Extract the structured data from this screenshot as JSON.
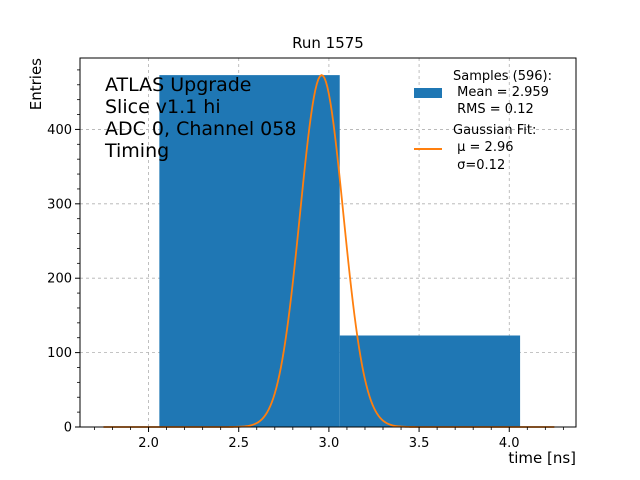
{
  "title": "Run 1575",
  "xlabel": "time [ns]",
  "ylabel": "Entries",
  "annotation_lines": [
    "ATLAS Upgrade",
    "Slice v1.1 hi",
    "ADC 0, Channel 058",
    "Timing"
  ],
  "legend": {
    "placement": "top-right",
    "hist_lines": [
      "Samples (596):",
      " Mean = 2.959",
      " RMS = 0.12"
    ],
    "fit_lines": [
      "Gaussian Fit:",
      " μ = 2.96",
      " σ=0.12"
    ]
  },
  "colors": {
    "hist": "#1f77b4",
    "fit": "#ff7f0e",
    "grid": "#b0b0b0"
  },
  "chart_data": {
    "type": "bar",
    "title": "Run 1575",
    "xlabel": "time [ns]",
    "ylabel": "Entries",
    "xlim": [
      1.62,
      4.37
    ],
    "ylim": [
      0,
      496
    ],
    "grid": true,
    "xticks": [
      2.0,
      2.5,
      3.0,
      3.5,
      4.0
    ],
    "yticks": [
      0,
      100,
      200,
      300,
      400
    ],
    "histogram": {
      "name": "Samples (596):",
      "bin_edges": [
        2.06,
        3.06,
        4.06
      ],
      "counts": [
        473,
        123
      ]
    },
    "fit": {
      "name": "Gaussian Fit:",
      "function": "gaussian",
      "amplitude": 473,
      "mu": 2.96,
      "sigma": 0.12,
      "x_range": [
        1.75,
        4.25
      ]
    }
  }
}
